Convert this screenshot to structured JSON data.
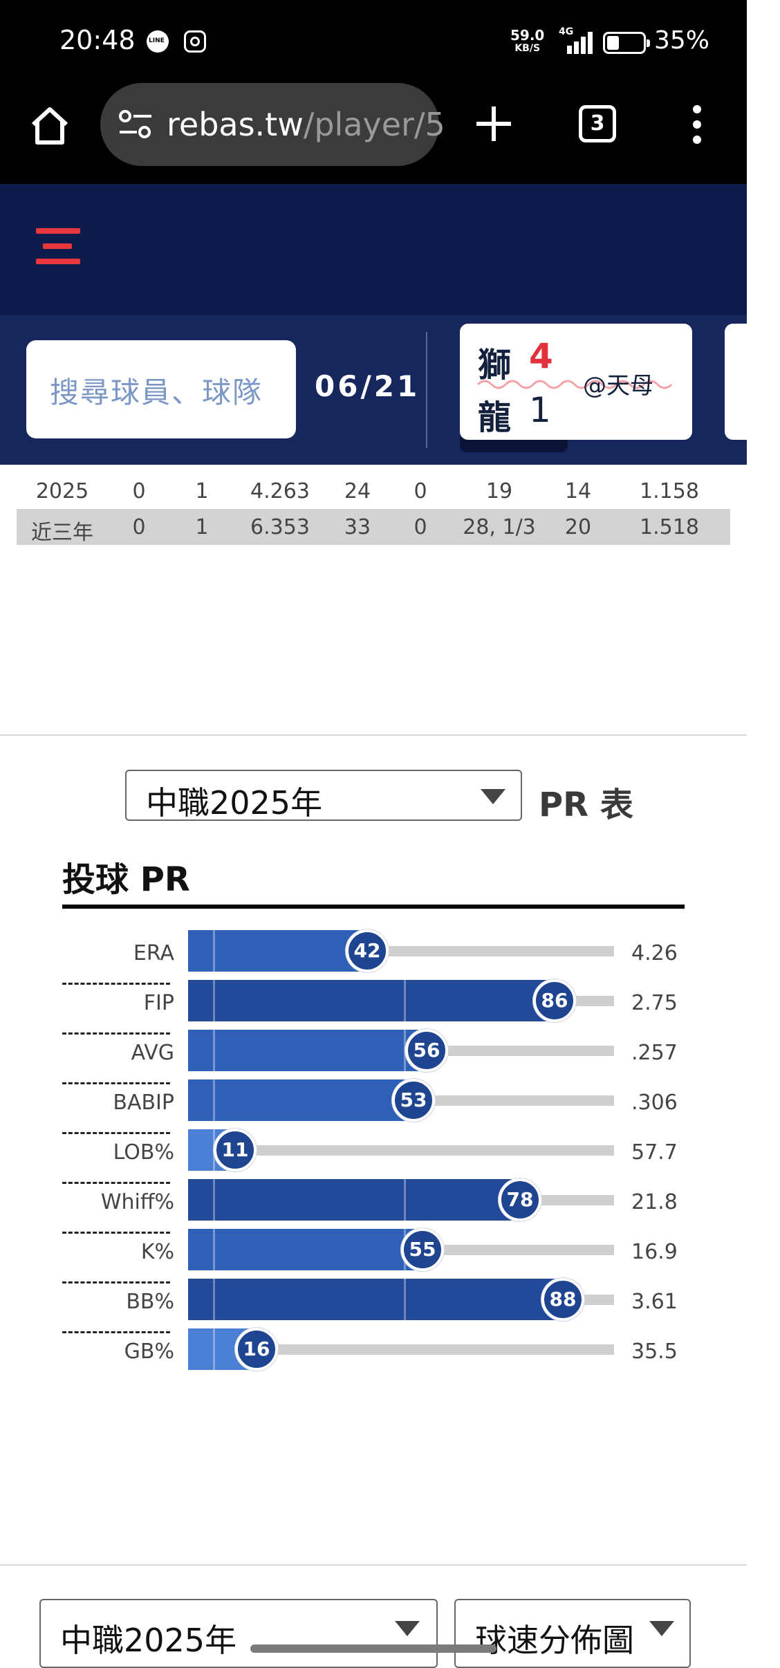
{
  "status_bar": {
    "time": "20:48",
    "app_icons": [
      "line-icon",
      "instagram-icon"
    ],
    "net_speed": "59.0",
    "net_speed_unit": "KB/S",
    "network": "4G",
    "battery": "35%"
  },
  "browser": {
    "url_host": "rebas.tw",
    "url_path": "/player/5",
    "tab_count": "3"
  },
  "score_strip": {
    "search_placeholder": "搜尋球員、球隊",
    "date": "06/21",
    "games": [
      {
        "home_team": "獅",
        "home_score": "4",
        "away_team": "龍",
        "away_score": "1",
        "venue": "@天母"
      }
    ]
  },
  "stats_table": {
    "rows": [
      [
        "2025",
        "0",
        "1",
        "4.263",
        "24",
        "0",
        "19",
        "14",
        "1.158"
      ],
      [
        "近三年",
        "0",
        "1",
        "6.353",
        "33",
        "0",
        "28, 1/3",
        "20",
        "1.518"
      ]
    ]
  },
  "pr_section": {
    "league_select": "中職2025年",
    "table_label": "PR 表",
    "title": "投球 PR",
    "colors": {
      "bar_light": "#4a7fd3",
      "bar_mid": "#2f60b8",
      "bar_dark": "#23499a",
      "dot": "#1f4591"
    },
    "rows": [
      {
        "label": "ERA",
        "pr": 42,
        "value": "4.26"
      },
      {
        "label": "FIP",
        "pr": 86,
        "value": "2.75"
      },
      {
        "label": "AVG",
        "pr": 56,
        "value": ".257"
      },
      {
        "label": "BABIP",
        "pr": 53,
        "value": ".306"
      },
      {
        "label": "LOB%",
        "pr": 11,
        "value": "57.7"
      },
      {
        "label": "Whiff%",
        "pr": 78,
        "value": "21.8"
      },
      {
        "label": "K%",
        "pr": 55,
        "value": "16.9"
      },
      {
        "label": "BB%",
        "pr": 88,
        "value": "3.61"
      },
      {
        "label": "GB%",
        "pr": 16,
        "value": "35.5"
      }
    ]
  },
  "bottom_selects": {
    "league_select": "中職2025年",
    "chart_select": "球速分佈圖"
  }
}
